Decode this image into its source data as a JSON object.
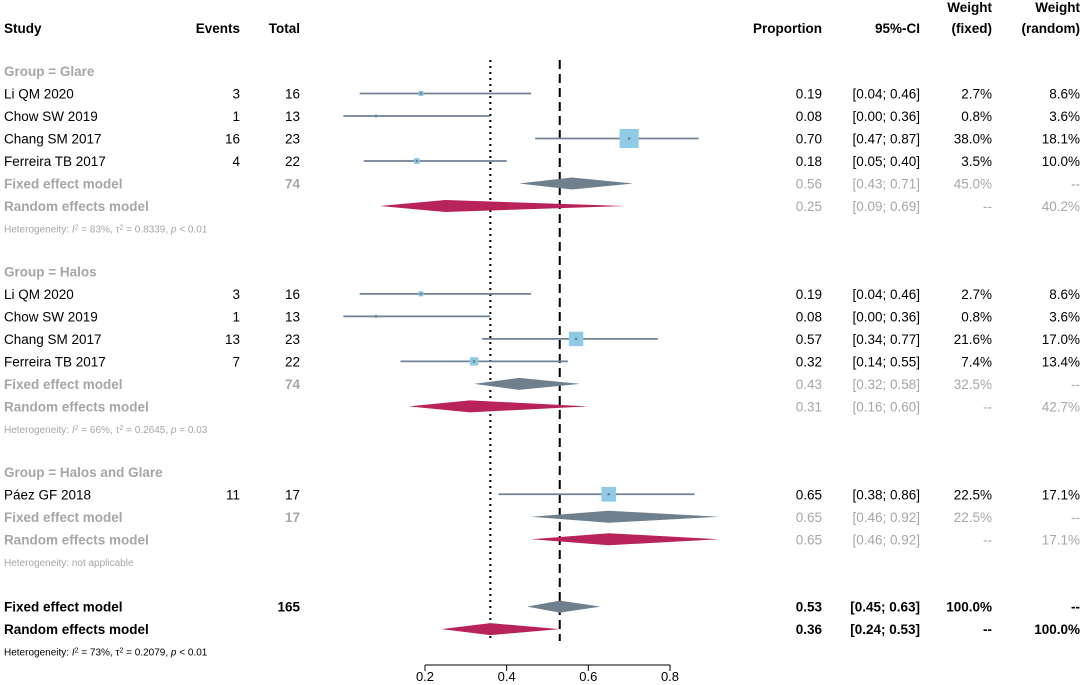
{
  "chart_data": {
    "type": "forest",
    "headers": {
      "study": "Study",
      "events": "Events",
      "total": "Total",
      "proportion": "Proportion",
      "ci": "95%-CI",
      "weight_fixed": [
        "Weight",
        "(fixed)"
      ],
      "weight_random": [
        "Weight",
        "(random)"
      ]
    },
    "x_axis": {
      "ticks": [
        0.2,
        0.4,
        0.6,
        0.8
      ],
      "tick_labels": [
        "0.2",
        "0.4",
        "0.6",
        "0.8"
      ],
      "xlim": [
        0.2,
        0.8
      ]
    },
    "reference_lines": {
      "fixed_overall": 0.53,
      "random_overall": 0.36
    },
    "colors": {
      "study": "#6f8192",
      "box": "#8fcbe6",
      "fixed_diamond": "#6e7f8e",
      "random_diamond": "#b8235a",
      "subgroup_text": "#a6a6a6"
    },
    "groups": [
      {
        "title": "Group = Glare",
        "studies": [
          {
            "name": "Li QM 2020",
            "events": "3",
            "total": "16",
            "est": 0.19,
            "lo": 0.04,
            "hi": 0.46,
            "prop": "0.19",
            "ci": "[0.04; 0.46]",
            "wf": "2.7%",
            "wr": "8.6%",
            "wfn": 2.7
          },
          {
            "name": "Chow SW 2019",
            "events": "1",
            "total": "13",
            "est": 0.08,
            "lo": 0.0,
            "hi": 0.36,
            "prop": "0.08",
            "ci": "[0.00; 0.36]",
            "wf": "0.8%",
            "wr": "3.6%",
            "wfn": 0.8
          },
          {
            "name": "Chang SM 2017",
            "events": "16",
            "total": "23",
            "est": 0.7,
            "lo": 0.47,
            "hi": 0.87,
            "prop": "0.70",
            "ci": "[0.47; 0.87]",
            "wf": "38.0%",
            "wr": "18.1%",
            "wfn": 38.0
          },
          {
            "name": "Ferreira TB 2017",
            "events": "4",
            "total": "22",
            "est": 0.18,
            "lo": 0.05,
            "hi": 0.4,
            "prop": "0.18",
            "ci": "[0.05; 0.40]",
            "wf": "3.5%",
            "wr": "10.0%",
            "wfn": 3.5
          }
        ],
        "fixed": {
          "label": "Fixed effect model",
          "total": "74",
          "est": 0.56,
          "lo": 0.43,
          "hi": 0.71,
          "prop": "0.56",
          "ci": "[0.43; 0.71]",
          "wf": "45.0%",
          "wr": "--"
        },
        "random": {
          "label": "Random effects model",
          "est": 0.25,
          "lo": 0.09,
          "hi": 0.69,
          "prop": "0.25",
          "ci": "[0.09; 0.69]",
          "wf": "--",
          "wr": "40.2%"
        },
        "heterogeneity": {
          "i2": "83%",
          "tau2": "0.8339",
          "p": "p < 0.01"
        }
      },
      {
        "title": "Group = Halos",
        "studies": [
          {
            "name": "Li QM 2020",
            "events": "3",
            "total": "16",
            "est": 0.19,
            "lo": 0.04,
            "hi": 0.46,
            "prop": "0.19",
            "ci": "[0.04; 0.46]",
            "wf": "2.7%",
            "wr": "8.6%",
            "wfn": 2.7
          },
          {
            "name": "Chow SW 2019",
            "events": "1",
            "total": "13",
            "est": 0.08,
            "lo": 0.0,
            "hi": 0.36,
            "prop": "0.08",
            "ci": "[0.00; 0.36]",
            "wf": "0.8%",
            "wr": "3.6%",
            "wfn": 0.8
          },
          {
            "name": "Chang SM 2017",
            "events": "13",
            "total": "23",
            "est": 0.57,
            "lo": 0.34,
            "hi": 0.77,
            "prop": "0.57",
            "ci": "[0.34; 0.77]",
            "wf": "21.6%",
            "wr": "17.0%",
            "wfn": 21.6
          },
          {
            "name": "Ferreira TB 2017",
            "events": "7",
            "total": "22",
            "est": 0.32,
            "lo": 0.14,
            "hi": 0.55,
            "prop": "0.32",
            "ci": "[0.14; 0.55]",
            "wf": "7.4%",
            "wr": "13.4%",
            "wfn": 7.4
          }
        ],
        "fixed": {
          "label": "Fixed effect model",
          "total": "74",
          "est": 0.43,
          "lo": 0.32,
          "hi": 0.58,
          "prop": "0.43",
          "ci": "[0.32; 0.58]",
          "wf": "32.5%",
          "wr": "--"
        },
        "random": {
          "label": "Random effects model",
          "est": 0.31,
          "lo": 0.16,
          "hi": 0.6,
          "prop": "0.31",
          "ci": "[0.16; 0.60]",
          "wf": "--",
          "wr": "42.7%"
        },
        "heterogeneity": {
          "i2": "66%",
          "tau2": "0.2645",
          "p": "p = 0.03"
        }
      },
      {
        "title": "Group = Halos and Glare",
        "studies": [
          {
            "name": "Páez GF 2018",
            "events": "11",
            "total": "17",
            "est": 0.65,
            "lo": 0.38,
            "hi": 0.86,
            "prop": "0.65",
            "ci": "[0.38; 0.86]",
            "wf": "22.5%",
            "wr": "17.1%",
            "wfn": 22.5
          }
        ],
        "fixed": {
          "label": "Fixed effect model",
          "total": "17",
          "est": 0.65,
          "lo": 0.46,
          "hi": 0.92,
          "prop": "0.65",
          "ci": "[0.46; 0.92]",
          "wf": "22.5%",
          "wr": "--"
        },
        "random": {
          "label": "Random effects model",
          "est": 0.65,
          "lo": 0.46,
          "hi": 0.92,
          "prop": "0.65",
          "ci": "[0.46; 0.92]",
          "wf": "--",
          "wr": "17.1%"
        },
        "heterogeneity_text": "Heterogeneity: not applicable"
      }
    ],
    "overall": {
      "fixed": {
        "label": "Fixed effect model",
        "total": "165",
        "est": 0.53,
        "lo": 0.45,
        "hi": 0.63,
        "prop": "0.53",
        "ci": "[0.45; 0.63]",
        "wf": "100.0%",
        "wr": "--"
      },
      "random": {
        "label": "Random effects model",
        "est": 0.36,
        "lo": 0.24,
        "hi": 0.53,
        "prop": "0.36",
        "ci": "[0.24; 0.53]",
        "wf": "--",
        "wr": "100.0%"
      },
      "heterogeneity": {
        "i2": "73%",
        "tau2": "0.2079",
        "p": "p < 0.01"
      }
    },
    "heterogeneity_prefix": "Heterogeneity: "
  }
}
